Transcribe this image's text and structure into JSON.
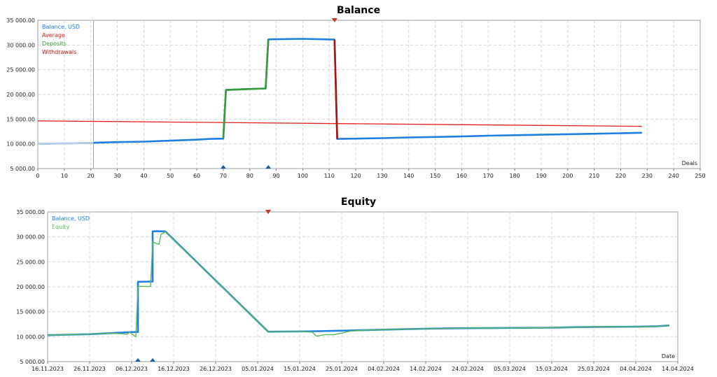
{
  "chart_data": [
    {
      "type": "line",
      "title": "Balance",
      "xlabel": "Deals",
      "ylabel": "",
      "xlim": [
        0,
        250
      ],
      "ylim": [
        5000,
        35000
      ],
      "x_ticks": [
        0,
        10,
        20,
        30,
        40,
        50,
        60,
        70,
        80,
        90,
        100,
        110,
        120,
        130,
        140,
        150,
        160,
        170,
        180,
        190,
        200,
        210,
        220,
        230,
        240,
        250
      ],
      "x_tick_labels": [
        "0",
        "10",
        "20",
        "30",
        "40",
        "50",
        "60",
        "70",
        "80",
        "90",
        "100",
        "110",
        "120",
        "130",
        "140",
        "150",
        "160",
        "170",
        "180",
        "190",
        "200",
        "210",
        "220",
        "230",
        "240",
        "250"
      ],
      "y_ticks": [
        5000,
        10000,
        15000,
        20000,
        25000,
        30000,
        35000
      ],
      "y_tick_labels": [
        "5 000.00",
        "10 000.00",
        "15 000.00",
        "20 000.00",
        "25 000.00",
        "30 000.00",
        "35 000.00"
      ],
      "grid": true,
      "legend_position": "top-left",
      "legend": [
        {
          "name": "Balance, USD",
          "color": "#1e7fe0"
        },
        {
          "name": "Average",
          "color": "#e02020"
        },
        {
          "name": "Deposits",
          "color": "#3a9a3a"
        },
        {
          "name": "Withdrawals",
          "color": "#b01010"
        }
      ],
      "history_marker_x": 21,
      "series": [
        {
          "name": "Balance, USD",
          "color": "#1e7fe0",
          "x": [
            0,
            21,
            22,
            30,
            40,
            50,
            60,
            65,
            70,
            71,
            80,
            86,
            87,
            88,
            100,
            112,
            113,
            120,
            130,
            140,
            150,
            160,
            170,
            180,
            190,
            200,
            210,
            220,
            228
          ],
          "y": [
            10000,
            10200,
            10250,
            10350,
            10450,
            10650,
            10850,
            11000,
            11050,
            20900,
            21100,
            21200,
            31100,
            31150,
            31250,
            31100,
            11000,
            11050,
            11150,
            11300,
            11400,
            11500,
            11650,
            11750,
            11850,
            11950,
            12050,
            12150,
            12250
          ]
        },
        {
          "name": "Average",
          "color": "#e02020",
          "x": [
            0,
            228
          ],
          "y": [
            14650,
            13550
          ]
        },
        {
          "name": "Deposits",
          "color": "#3a9a3a",
          "x": [
            70,
            71,
            86,
            87
          ],
          "y": [
            11050,
            20900,
            21200,
            31100
          ]
        },
        {
          "name": "Withdrawals",
          "color": "#b01010",
          "x": [
            112,
            113
          ],
          "y": [
            31100,
            11000
          ]
        }
      ],
      "deposit_markers_x": [
        70,
        87
      ],
      "withdrawal_markers_x": [
        112
      ]
    },
    {
      "type": "line",
      "title": "Equity",
      "xlabel": "Date",
      "ylabel": "",
      "ylim": [
        5000,
        35000
      ],
      "x_tick_labels": [
        "16.11.2023",
        "26.11.2023",
        "06.12.2023",
        "16.12.2023",
        "26.12.2023",
        "05.01.2024",
        "15.01.2024",
        "25.01.2024",
        "04.02.2024",
        "14.02.2024",
        "24.02.2024",
        "05.03.2024",
        "15.03.2024",
        "25.03.2024",
        "04.04.2024",
        "14.04.2024"
      ],
      "y_ticks": [
        5000,
        10000,
        15000,
        20000,
        25000,
        30000,
        35000
      ],
      "y_tick_labels": [
        "5 000.00",
        "10 000.00",
        "15 000.00",
        "20 000.00",
        "25 000.00",
        "30 000.00",
        "35 000.00"
      ],
      "grid": true,
      "legend_position": "top-left",
      "legend": [
        {
          "name": "Balance, USD",
          "color": "#1e7fe0"
        },
        {
          "name": "Equity",
          "color": "#5cb85c"
        }
      ],
      "series": [
        {
          "name": "Balance, USD",
          "color": "#1e7fe0",
          "x": [
            0,
            5,
            10,
            15,
            19.5,
            21.5,
            21.5,
            25,
            25,
            26.2,
            28,
            52.5,
            62,
            64,
            70,
            75,
            80,
            90,
            100,
            110,
            120,
            125,
            130,
            140,
            145,
            148
          ],
          "y": [
            10300,
            10400,
            10500,
            10700,
            10900,
            10950,
            21000,
            21050,
            31100,
            31150,
            31100,
            11000,
            11050,
            11100,
            11200,
            11300,
            11400,
            11600,
            11700,
            11750,
            11800,
            11900,
            11950,
            12000,
            12100,
            12250
          ]
        },
        {
          "name": "Equity",
          "color": "#5cb85c",
          "x": [
            0,
            5,
            10,
            15,
            19,
            19.5,
            21,
            21.5,
            22,
            24.5,
            25,
            25.5,
            26.5,
            27,
            28,
            52.5,
            60,
            63,
            64,
            66,
            68,
            70,
            72,
            75,
            80,
            90,
            100,
            110,
            120,
            125,
            130,
            140,
            145,
            148
          ],
          "y": [
            10300,
            10400,
            10500,
            10700,
            10500,
            10900,
            9950,
            20000,
            20100,
            20050,
            29000,
            28800,
            28500,
            30500,
            31000,
            11000,
            11050,
            10900,
            10100,
            10400,
            10400,
            10700,
            11100,
            11300,
            11400,
            11600,
            11700,
            11750,
            11800,
            11900,
            11950,
            12000,
            12100,
            12250
          ]
        }
      ],
      "deposit_markers_x": [
        21.5,
        25
      ],
      "withdrawal_markers_x": [
        52.5
      ]
    }
  ]
}
